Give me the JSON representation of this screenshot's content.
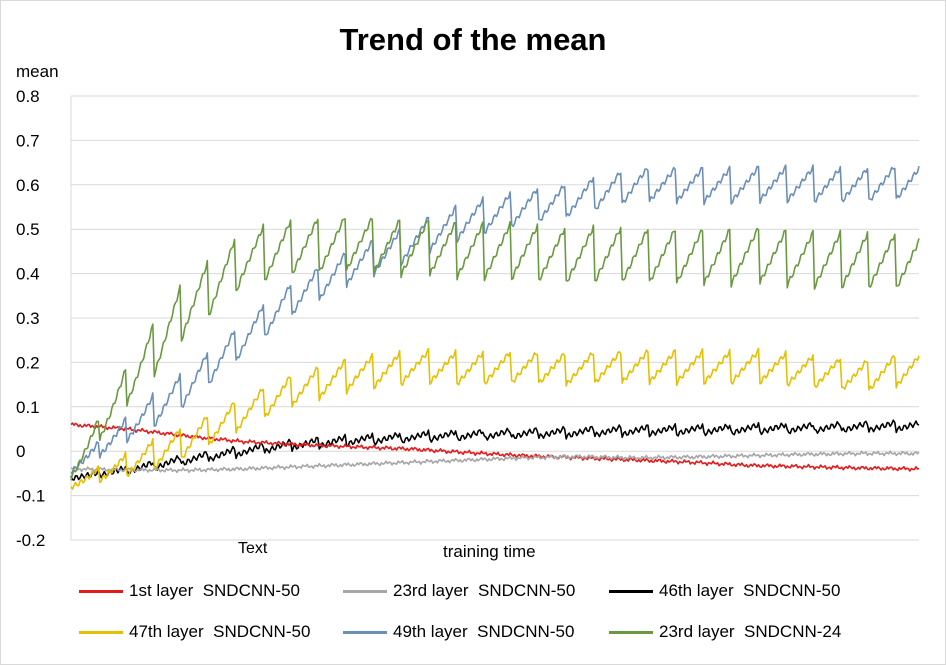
{
  "chart_data": {
    "type": "line",
    "title": "Trend of the mean",
    "ylabel": "mean",
    "xlabel": "training time",
    "annotation": "Text",
    "ylim": [
      -0.2,
      0.8
    ],
    "yticks": [
      "0.8",
      "0.7",
      "0.6",
      "0.5",
      "0.4",
      "0.3",
      "0.2",
      "0.1",
      "0",
      "-0.1",
      "-0.2"
    ],
    "ytick_values": [
      0.8,
      0.7,
      0.6,
      0.5,
      0.4,
      0.3,
      0.2,
      0.1,
      0.0,
      -0.1,
      -0.2
    ],
    "grid": true,
    "legend_position": "bottom",
    "series": [
      {
        "name": "1st layer  SNDCNN-50",
        "color": "#e41a1c",
        "sawtooth": false,
        "values": [
          0.06,
          0.05,
          0.035,
          0.022,
          0.015,
          0.01,
          0.005,
          -0.003,
          -0.01,
          -0.015,
          -0.02,
          -0.025,
          -0.032,
          -0.035,
          -0.038,
          -0.04
        ]
      },
      {
        "name": "23rd layer  SNDCNN-50",
        "color": "#a6a6a6",
        "sawtooth": false,
        "values": [
          -0.04,
          -0.042,
          -0.043,
          -0.04,
          -0.035,
          -0.03,
          -0.025,
          -0.02,
          -0.015,
          -0.012,
          -0.015,
          -0.013,
          -0.01,
          -0.007,
          -0.005,
          -0.005
        ]
      },
      {
        "name": "46th layer  SNDCNN-50",
        "color": "#000000",
        "sawtooth": true,
        "values": [
          -0.06,
          -0.042,
          -0.02,
          0.0,
          0.015,
          0.025,
          0.032,
          0.036,
          0.04,
          0.043,
          0.046,
          0.048,
          0.05,
          0.052,
          0.055,
          0.058
        ]
      },
      {
        "name": "47th layer  SNDCNN-50",
        "color": "#e6c000",
        "sawtooth": true,
        "values": [
          -0.075,
          -0.03,
          0.02,
          0.085,
          0.14,
          0.175,
          0.19,
          0.185,
          0.19,
          0.185,
          0.19,
          0.19,
          0.19,
          0.18,
          0.17,
          0.19
        ]
      },
      {
        "name": "49th layer  SNDCNN-50",
        "color": "#6a8fb8",
        "sawtooth": true,
        "values": [
          -0.04,
          0.05,
          0.14,
          0.25,
          0.35,
          0.42,
          0.47,
          0.52,
          0.55,
          0.57,
          0.6,
          0.6,
          0.6,
          0.6,
          0.6,
          0.61
        ]
      },
      {
        "name": "23rd layer  SNDCNN-24",
        "color": "#6a9a40",
        "sawtooth": true,
        "values": [
          -0.05,
          0.15,
          0.32,
          0.43,
          0.46,
          0.47,
          0.46,
          0.45,
          0.45,
          0.44,
          0.44,
          0.44,
          0.44,
          0.43,
          0.43,
          0.43
        ]
      }
    ]
  }
}
